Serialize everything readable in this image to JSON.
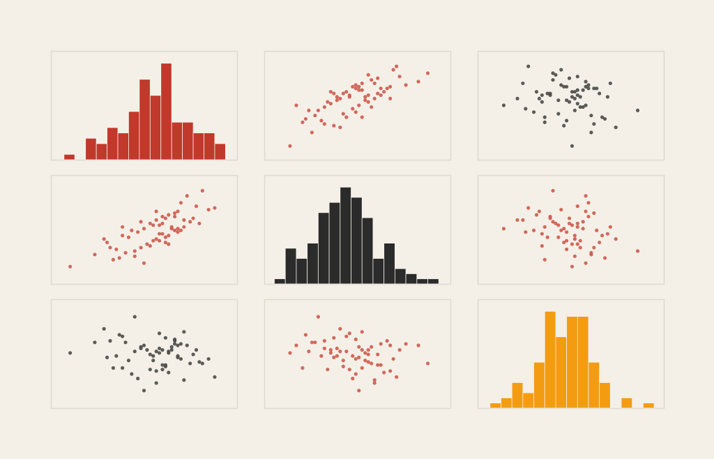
{
  "chart_data": {
    "type": "pairplot",
    "variables": [
      {
        "lim": [
          -3,
          2.6
        ],
        "values": [
          0.3,
          -1.2,
          0.8,
          1.5,
          -0.4,
          0.1,
          0.9,
          -0.7,
          1.1,
          0.5,
          -1.8,
          0.2,
          0.6,
          -0.3,
          1.9,
          -0.9,
          0.4,
          0.0,
          1.3,
          -0.5,
          0.7,
          -1.4,
          0.2,
          1.0,
          -0.1,
          0.5,
          -2.6,
          0.8,
          1.6,
          -0.6,
          0.3,
          0.9,
          -1.0,
          0.1,
          1.2,
          -0.2,
          0.6,
          -0.8,
          0.4,
          1.4,
          -1.5,
          0.0,
          0.7,
          2.1,
          -0.3,
          0.5,
          1.0,
          -1.1,
          0.2,
          0.8,
          -0.5,
          1.7,
          0.3,
          -0.9,
          0.6,
          1.1,
          -0.2,
          0.4,
          -1.3,
          0.9
        ]
      },
      {
        "lim": [
          -2.5,
          3
        ],
        "values": [
          0.5,
          -1.5,
          0.2,
          1.6,
          0.1,
          -0.4,
          1.3,
          -0.2,
          0.4,
          0.9,
          -1.2,
          -0.3,
          1.1,
          -0.8,
          1.4,
          -0.1,
          0.0,
          0.6,
          0.7,
          -1.0,
          0.3,
          -0.5,
          0.8,
          1.8,
          -0.6,
          -0.2,
          -1.9,
          1.2,
          0.6,
          0.2,
          -0.4,
          0.1,
          -1.4,
          0.5,
          2.2,
          0.3,
          -0.1,
          -1.1,
          1.0,
          0.9,
          -0.3,
          -0.7,
          0.4,
          1.5,
          0.7,
          -0.5,
          0.2,
          -0.9,
          1.3,
          1.0,
          -1.3,
          2.5,
          0.0,
          0.4,
          -0.6,
          0.8,
          -1.7,
          0.6,
          -0.8,
          0.3
        ]
      },
      {
        "lim": [
          -3,
          3.3
        ],
        "values": [
          0.2,
          -0.8,
          1.1,
          0.4,
          -1.5,
          0.0,
          0.7,
          -0.3,
          1.6,
          -0.6,
          0.9,
          0.3,
          -1.1,
          0.5,
          -0.2,
          1.3,
          -0.9,
          0.1,
          -0.5,
          2.6,
          0.6,
          -0.1,
          -1.8,
          0.8,
          0.4,
          -0.7,
          0.2,
          1.0,
          -0.4,
          -1.2,
          0.5,
          0.0,
          1.4,
          -0.3,
          0.7,
          -2.3,
          0.3,
          0.9,
          -0.6,
          0.1,
          1.8,
          -0.9,
          0.4,
          -1.4,
          0.6,
          1.2,
          -0.2,
          0.0,
          -1.0,
          0.8,
          0.3,
          -0.5,
          1.5,
          -0.8,
          0.2,
          -1.6,
          0.7,
          0.4,
          1.0,
          -0.1
        ]
      }
    ],
    "diagonal": [
      {
        "bins": [
          -2.8,
          -2.45,
          -2.1,
          -1.75,
          -1.4,
          -1.05,
          -0.7,
          -0.35,
          0,
          0.35,
          0.7,
          1.05,
          1.4,
          1.75,
          2.1,
          2.45
        ],
        "counts": [
          1,
          0,
          4,
          3,
          6,
          5,
          9,
          15,
          12,
          18,
          7,
          7,
          5,
          5,
          3
        ],
        "ylim": [
          0,
          19
        ]
      },
      {
        "bins": [
          -2.4,
          -2.05,
          -1.7,
          -1.35,
          -1.0,
          -0.65,
          -0.3,
          0.05,
          0.4,
          0.75,
          1.1,
          1.45,
          1.8,
          2.15,
          2.5,
          2.85
        ],
        "counts": [
          1,
          7,
          5,
          8,
          14,
          16,
          19,
          17,
          13,
          5,
          8,
          3,
          2,
          1,
          1
        ],
        "ylim": [
          0,
          20
        ]
      },
      {
        "bins": [
          -2.8,
          -2.4,
          -2.0,
          -1.6,
          -1.2,
          -0.8,
          -0.4,
          0,
          0.4,
          0.8,
          1.2,
          1.6,
          2.0,
          2.4,
          2.8,
          3.2
        ],
        "counts": [
          1,
          2,
          5,
          3,
          9,
          19,
          14,
          18,
          18,
          9,
          5,
          0,
          2,
          0,
          1
        ],
        "ylim": [
          0,
          20
        ]
      }
    ],
    "grid_colors": [
      [
        "#c0392b",
        "#cd5a4c",
        "#4a4a46"
      ],
      [
        "#cd5a4c",
        "#2b2b2b",
        "#cd5a4c"
      ],
      [
        "#4a4a46",
        "#cd5a4c",
        "#f39c12"
      ]
    ]
  }
}
